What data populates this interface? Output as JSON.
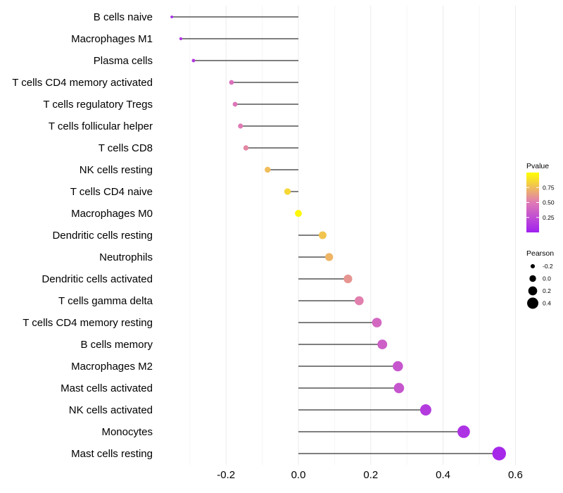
{
  "chart_data": {
    "type": "lollipop",
    "title": "",
    "xlabel": "",
    "ylabel": "",
    "xlim": [
      -0.4,
      0.6
    ],
    "xticks": [
      -0.2,
      0.0,
      0.2,
      0.4,
      0.6
    ],
    "xtick_labels": [
      "-0.2",
      "0.0",
      "0.2",
      "0.4",
      "0.6"
    ],
    "grid": true,
    "categories": [
      "B cells naive",
      "Macrophages M1",
      "Plasma cells",
      "T cells CD4 memory activated",
      "T cells regulatory  Tregs",
      "T cells follicular helper",
      "T cells CD8",
      "NK cells resting",
      "T cells CD4 naive",
      "Macrophages M0",
      "Dendritic cells resting",
      "Neutrophils",
      "Dendritic cells activated",
      "T cells gamma delta",
      "T cells CD4 memory resting",
      "B cells memory",
      "Macrophages M2",
      "Mast cells activated",
      "NK cells activated",
      "Monocytes",
      "Mast cells resting"
    ],
    "pearson": [
      -0.35,
      -0.325,
      -0.29,
      -0.185,
      -0.175,
      -0.16,
      -0.145,
      -0.085,
      -0.03,
      0.0,
      0.067,
      0.085,
      0.137,
      0.168,
      0.217,
      0.232,
      0.275,
      0.278,
      0.352,
      0.457,
      0.555
    ],
    "pvalue": [
      0.05,
      0.12,
      0.15,
      0.45,
      0.48,
      0.5,
      0.55,
      0.75,
      0.85,
      0.97,
      0.78,
      0.72,
      0.6,
      0.52,
      0.4,
      0.35,
      0.3,
      0.3,
      0.15,
      0.1,
      0.05
    ],
    "color_legend": {
      "title": "Pvalue",
      "ticks": [
        0.25,
        0.5,
        0.75
      ],
      "tick_labels": [
        "0.25",
        "0.50",
        "0.75"
      ],
      "low_color": "#a020f0",
      "mid_color": "#e07ab5",
      "high_color": "#ffff00"
    },
    "size_legend": {
      "title": "Pearson",
      "values": [
        -0.2,
        0.0,
        0.2,
        0.4
      ],
      "labels": [
        "-0.2",
        "0.0",
        "0.2",
        "0.4"
      ]
    },
    "line_color": "#333333",
    "legend_position": "right"
  }
}
